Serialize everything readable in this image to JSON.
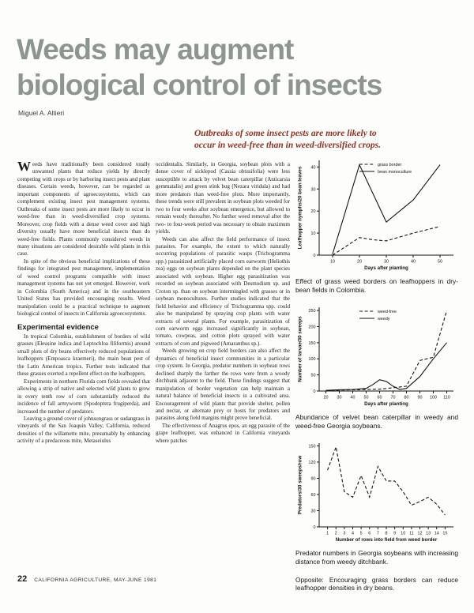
{
  "page": {
    "title_line1": "Weeds may augment",
    "title_line2": "biological control of insects",
    "author": "Miguel A. Altieri",
    "pullquote_line1": "Outbreaks of some insect pests are more likely to",
    "pullquote_line2": "occur in weed-free than in weed-diversified crops.",
    "footer_page_number": "22",
    "footer_text": "CALIFORNIA AGRICULTURE, MAY-JUNE 1981"
  },
  "article": {
    "dropcap": "W",
    "col1_para1": "eeds have traditionally been considered totally unwanted plants that reduce yields by directly competing with crops or by harboring insect pests and plant diseases. Certain weeds, however, can be regarded as important components of agroecosystems, which can complement existing insect pest management systems. Outbreaks of some insect pests are more likely to occur in weed-free than in weed-diversified crop systems. Moreover, crop fields with a dense weed cover and high diversity usually have more beneficial insects than do weed-free fields. Plants commonly considered weeds in many situations are considered desirable wild plants in this case.",
    "col1_para2": "In spite of the obvious beneficial implications of these findings for integrated pest management, implementation of weed control programs compatible with insect management systems has not yet emerged. However, work in Colombia (South America) and in the southeastern United States has provided encouraging results. Weed manipulation could be a practical technique to augment biological control of insects in California agroecosystems.",
    "section_heading": "Experimental evidence",
    "col1_para3": "In tropical Colombia, establishment of borders of wild grasses (Eleusine indica and Leptochloa filiformis) around small plots of dry beans effectively reduced populations of leafhoppers (Empoasca kraemeri), the main bean pest of the Latin American tropics. Further tests indicated that these grasses exerted a repellent effect on the leafhoppers.",
    "col1_para4": "Experiments in northern Florida corn fields revealed that allowing a strip of native and selected wild plants to grow in every tenth row of corn substantially reduced the incidence of fall armyworm (Spodoptera frugiperda), and increased the number of predators.",
    "col1_para5": "Leaving a ground cover of johnsongrass or sudangrass in vineyards of the San Joaquin Valley, California, reduced densities of the willamette mite, presumably by enhancing activity of a predaceous mite, Metaseiulus",
    "col2_para1": "occidentalis. Similarly, in Georgia, soybean plots with a dense cover of sicklepod (Cassia obtusifolia) were less susceptible to attack by velvet bean caterpillar (Anticarsia gemmatalis) and green stink bug (Nezara viridula) and had more predators than weed-free plots. More importantly, these trends were still prevalent in soybean plots weeded for two to four weeks after soybean emergence, but allowed to remain weedy thereafter. No further weed removal after the two- to four-week period was necessary to obtain maximum yields.",
    "col2_para2": "Weeds can also affect the field performance of insect parasites. For example, the extent to which naturally occurring populations of parasitic wasps (Trichogramma spp.) parasitized artificially placed corn earworm (Heliothis zea) eggs on soybean plants depended on the plant species associated with soybean. Higher egg parasitization was recorded on soybean associated with Desmodium sp. and Croton sp. than on soybean intermingled with grasses or in soybean monocultures. Further studies indicated that the field behavior and efficiency of Trichogramma spp. could also be manipulated by spraying crop plants with water extracts of several plants. For example, parasitization of corn earworm eggs increased significantly in soybean, tomato, cowpeas, and cotton plots sprayed with water extracts of corn and pigweed (Amaranthus sp.).",
    "col2_para3": "Weeds growing on crop field borders can also affect the dynamics of beneficial insect communities in a particular crop system. In Georgia, predator numbers in soybean rows declined sharply the farther the rows were from a woody ditchbank adjacent to the field. These findings suggest that manipulation of border vegetation can help maintain a natural balance of beneficial insects in a cultivated area. Encouragement of wild plants that provide shelter, pollen and nectar, or alternate prey or hosts for predators and parasites along field margins might prove beneficial.",
    "col2_para4": "The effectiveness of Anagrus epos, an egg parasite of the grape leafhopper, was enhanced in California vineyards where patches"
  },
  "figures": {
    "caption1": "Effect of grass weed borders on leafhoppers in dry-bean fields in Colombia.",
    "caption2": "Abundance of velvet bean caterpillar in weedy and weed-free Georgia soybeans.",
    "caption3": "Predator numbers in Georgia soybeans with increasing distance from weedy ditchbank.",
    "opposite_note": "Opposite: Encouraging grass borders can reduce leafhopper densities in dry beans."
  },
  "chart_data": [
    {
      "type": "line",
      "xlabel": "Days after planting",
      "ylabel": "Leafhopper nymphs/20 bean leaves",
      "xlim": [
        5,
        55
      ],
      "ylim": [
        0,
        43
      ],
      "xticks": [
        10,
        20,
        30,
        40,
        50
      ],
      "yticks": [
        0,
        10,
        20,
        30,
        40
      ],
      "legend": true,
      "grid": false,
      "series": [
        {
          "name": "grass border",
          "style": "dashed",
          "x": [
            10,
            20,
            25,
            30,
            40,
            50
          ],
          "y": [
            0,
            8,
            7,
            6.5,
            10,
            13
          ]
        },
        {
          "name": "bean monoculture",
          "style": "solid",
          "x": [
            10,
            20,
            30,
            40,
            50
          ],
          "y": [
            0.5,
            41,
            15,
            25,
            41
          ]
        }
      ]
    },
    {
      "type": "line",
      "xlabel": "Days after planting",
      "ylabel": "Number of larvae/30 sweeps",
      "xlim": [
        15,
        115
      ],
      "ylim": [
        0,
        260
      ],
      "xticks": [
        20,
        30,
        40,
        50,
        60,
        70,
        80,
        90,
        100,
        110
      ],
      "yticks": [
        0,
        50,
        100,
        150,
        200,
        250
      ],
      "legend": true,
      "grid": false,
      "series": [
        {
          "name": "weed-free",
          "style": "dashed",
          "x": [
            20,
            30,
            40,
            50,
            60,
            70,
            80,
            90,
            100,
            110
          ],
          "y": [
            2,
            3,
            4,
            5,
            6,
            10,
            15,
            95,
            105,
            250
          ]
        },
        {
          "name": "weedy",
          "style": "solid",
          "x": [
            20,
            30,
            40,
            50,
            55,
            60,
            65,
            70,
            75,
            80,
            90,
            100,
            110
          ],
          "y": [
            2,
            4,
            5,
            8,
            20,
            35,
            30,
            15,
            5,
            8,
            45,
            100,
            150
          ]
        }
      ]
    },
    {
      "type": "line",
      "xlabel": "Number of rows into field from weed border",
      "ylabel": "Predators/30 sweeps/row",
      "xlim": [
        0,
        16
      ],
      "ylim": [
        0,
        155
      ],
      "xticks": [
        1,
        2,
        3,
        4,
        5,
        6,
        7,
        8,
        9,
        10,
        11,
        12,
        13,
        14,
        15
      ],
      "yticks": [
        0,
        30,
        60,
        90,
        120,
        150
      ],
      "legend": false,
      "grid": false,
      "series": [
        {
          "name": "predators",
          "style": "dashed",
          "x": [
            1,
            2,
            3,
            4,
            5,
            6,
            7,
            8,
            9,
            10,
            11,
            12,
            13,
            14,
            15
          ],
          "y": [
            105,
            148,
            65,
            55,
            95,
            55,
            112,
            85,
            85,
            65,
            40,
            47,
            55,
            42,
            22
          ]
        }
      ]
    }
  ]
}
